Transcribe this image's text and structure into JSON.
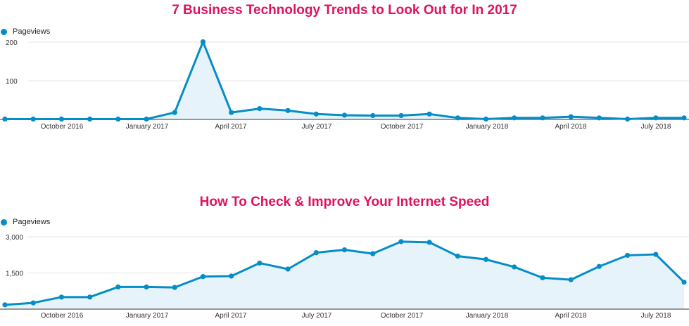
{
  "colors": {
    "title": "#e0115f",
    "series": "#058dc7",
    "fill": "#e6f3fa",
    "grid": "#e5e5e5",
    "axis": "#333333"
  },
  "chart_data": [
    {
      "type": "area",
      "title": "7 Business Technology Trends to Look Out for In 2017",
      "legend": "Pageviews",
      "legend_position": "top-left",
      "grid": true,
      "ylim": [
        0,
        200
      ],
      "yticks": [
        100,
        200
      ],
      "ytick_labels": [
        "100",
        "200"
      ],
      "xtick_labels": [
        "October 2016",
        "January 2017",
        "April 2017",
        "July 2017",
        "October 2017",
        "January 2018",
        "April 2018",
        "July 2018"
      ],
      "series": [
        {
          "name": "Pageviews",
          "values": [
            1,
            1,
            1,
            1,
            1,
            1,
            18,
            201,
            18,
            28,
            23,
            14,
            11,
            10,
            10,
            14,
            4,
            1,
            4,
            4,
            7,
            4,
            1,
            4,
            4
          ]
        }
      ]
    },
    {
      "type": "area",
      "title": "How To Check & Improve Your Internet Speed",
      "legend": "Pageviews",
      "legend_position": "top-left",
      "grid": true,
      "ylim": [
        0,
        3000
      ],
      "yticks": [
        1500,
        3000
      ],
      "ytick_labels": [
        "1,500",
        "3,000"
      ],
      "xtick_labels": [
        "October 2016",
        "January 2017",
        "April 2017",
        "July 2017",
        "October 2017",
        "January 2018",
        "April 2018",
        "July 2018"
      ],
      "series": [
        {
          "name": "Pageviews",
          "values": [
            180,
            260,
            500,
            500,
            920,
            920,
            900,
            1350,
            1370,
            1910,
            1660,
            2340,
            2460,
            2300,
            2800,
            2770,
            2200,
            2060,
            1750,
            1300,
            1220,
            1770,
            2230,
            2270,
            1120
          ]
        }
      ]
    }
  ]
}
